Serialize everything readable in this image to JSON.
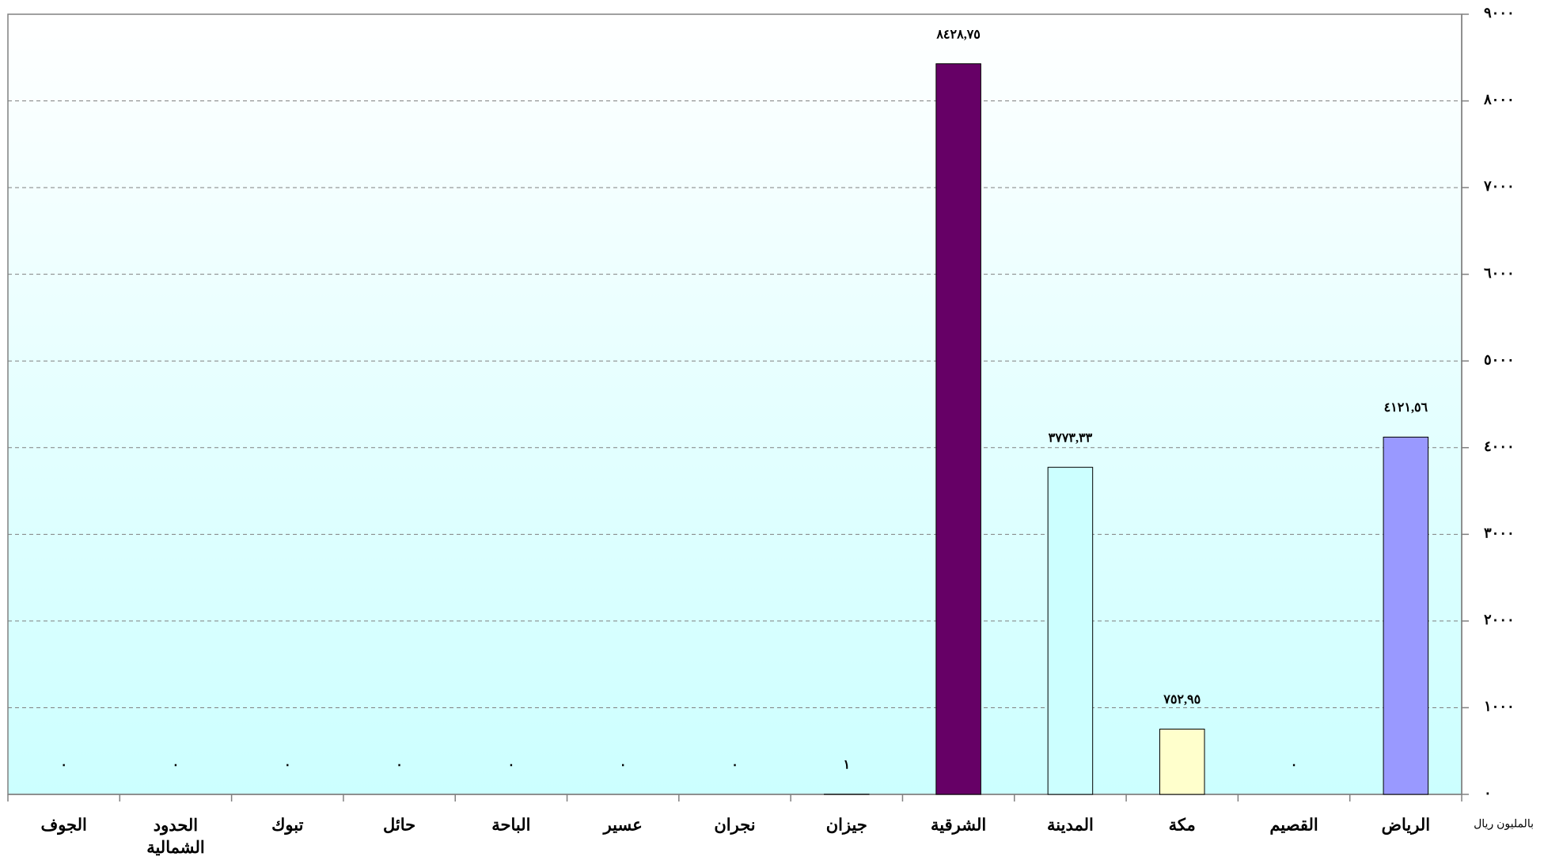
{
  "chart_data": {
    "type": "bar",
    "categories": [
      "الرياض",
      "القصيم",
      "مكة",
      "المدينة",
      "الشرقية",
      "جيزان",
      "نجران",
      "عسير",
      "الباحة",
      "حائل",
      "تبوك",
      "الحدود الشمالية",
      "الجوف"
    ],
    "values": [
      4121.56,
      0,
      752.95,
      3773.33,
      8428.75,
      1,
      0,
      0,
      0,
      0,
      0,
      0,
      0
    ],
    "value_labels": [
      "٤١٢١,٥٦",
      "٠",
      "٧٥٢,٩٥",
      "٣٧٧٣,٣٣",
      "٨٤٢٨,٧٥",
      "١",
      "٠",
      "٠",
      "٠",
      "٠",
      "٠",
      "٠",
      "٠"
    ],
    "colors": [
      "#9999ff",
      "#993366",
      "#ffffcc",
      "#ccffff",
      "#660066",
      "#ff8080",
      "#0066cc",
      "#ccccff",
      "#000080",
      "#ff00ff",
      "#ffff00",
      "#00ffff",
      "#800080"
    ],
    "y_axis_label": "بالمليون ريال",
    "ylim": [
      0,
      9000
    ],
    "yticks": [
      {
        "value": 0,
        "label": "٠"
      },
      {
        "value": 1000,
        "label": "١٠٠٠"
      },
      {
        "value": 2000,
        "label": "٢٠٠٠"
      },
      {
        "value": 3000,
        "label": "٣٠٠٠"
      },
      {
        "value": 4000,
        "label": "٤٠٠٠"
      },
      {
        "value": 5000,
        "label": "٥٠٠٠"
      },
      {
        "value": 6000,
        "label": "٦٠٠٠"
      },
      {
        "value": 7000,
        "label": "٧٠٠٠"
      },
      {
        "value": 8000,
        "label": "٨٠٠٠"
      },
      {
        "value": 9000,
        "label": "٩٠٠٠"
      }
    ],
    "grid": true,
    "x_direction": "right-to-left",
    "y_axis_side": "right"
  }
}
